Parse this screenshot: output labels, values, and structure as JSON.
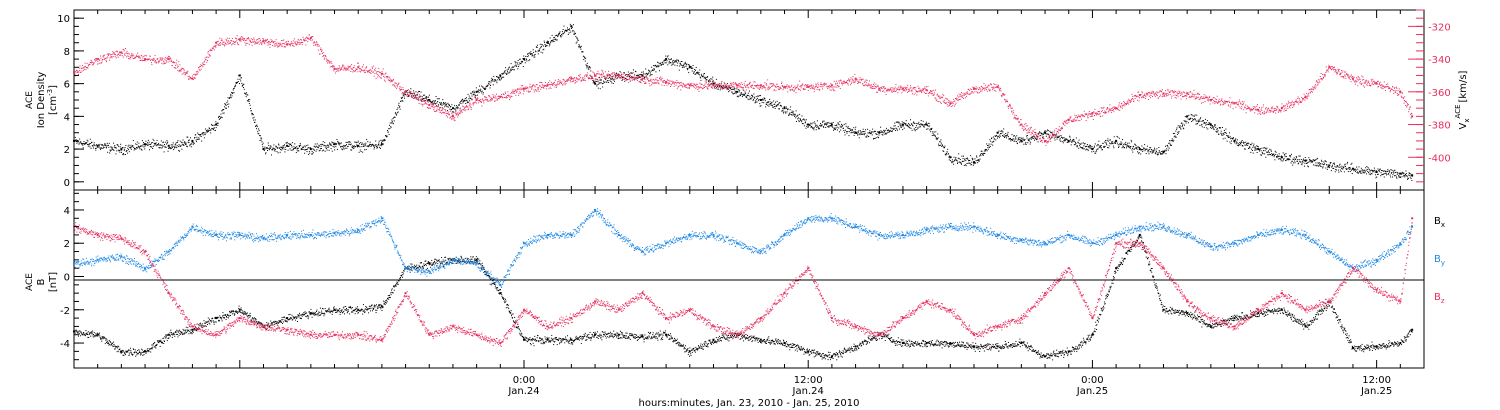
{
  "colors": {
    "axis": "#000000",
    "density": "#000000",
    "velocity": "#e8305f",
    "bx": "#000000",
    "by": "#1e88e5",
    "bz": "#e8305f"
  },
  "xlabel": "hours:minutes, Jan. 23, 2010 - Jan. 25, 2010",
  "x_range_hours": [
    -19,
    38
  ],
  "x_ticks": [
    {
      "hour": 0,
      "time": "0:00",
      "date": "Jan.24"
    },
    {
      "hour": 12,
      "time": "12:00",
      "date": "Jan.24"
    },
    {
      "hour": 24,
      "time": "0:00",
      "date": "Jan.25"
    },
    {
      "hour": 36,
      "time": "12:00",
      "date": "Jan.25"
    }
  ],
  "chart_data": [
    {
      "type": "scatter",
      "panel": "top",
      "ylabel_left": {
        "line1": "ACE",
        "line2": "Ion Density",
        "line3": "[cm",
        "sup": "-3",
        "close": "]"
      },
      "ylabel_right": {
        "var": "V",
        "sub": "x",
        "sup": "ACE",
        "unit": "[km/s]"
      },
      "ylim_left": [
        -0.5,
        10.5
      ],
      "yticks_left": [
        "0",
        "2",
        "4",
        "6",
        "8",
        "10"
      ],
      "ylim_right": [
        -420,
        -310
      ],
      "yticks_right": [
        "-320",
        "-340",
        "-360",
        "-380",
        "-400"
      ],
      "series": [
        {
          "name": "Ion Density",
          "axis": "left",
          "color_key": "density",
          "x": [
            -19,
            -18,
            -17,
            -16,
            -15,
            -14,
            -13,
            -12,
            -11,
            -10,
            -9,
            -8,
            -7,
            -6,
            -5,
            -4,
            -3,
            -2,
            -1,
            0,
            1,
            2,
            3,
            4,
            5,
            6,
            7,
            8,
            9,
            10,
            11,
            12,
            13,
            14,
            15,
            16,
            17,
            18,
            19,
            20,
            21,
            22,
            23,
            24,
            25,
            26,
            27,
            28,
            29,
            30,
            31,
            32,
            33,
            34,
            35,
            36,
            37,
            37.5
          ],
          "y": [
            2.5,
            2.2,
            2.0,
            2.3,
            2.2,
            2.5,
            3.5,
            6.5,
            2.0,
            2.2,
            2.0,
            2.3,
            2.2,
            2.3,
            5.5,
            5.0,
            4.5,
            5.5,
            6.5,
            7.5,
            8.5,
            9.5,
            6.0,
            6.5,
            6.5,
            7.5,
            7.0,
            6.0,
            5.5,
            5.0,
            4.5,
            3.5,
            3.5,
            3.0,
            3.0,
            3.5,
            3.5,
            1.5,
            1.2,
            3.0,
            2.5,
            3.0,
            2.5,
            2.0,
            2.5,
            2.0,
            1.8,
            4.0,
            3.5,
            2.5,
            2.0,
            1.5,
            1.3,
            1.0,
            0.8,
            0.6,
            0.5,
            0.4
          ]
        },
        {
          "name": "Vx",
          "axis": "right",
          "color_key": "velocity",
          "x": [
            -19,
            -18,
            -17,
            -16,
            -15,
            -14,
            -13,
            -12,
            -11,
            -10,
            -9,
            -8,
            -7,
            -6,
            -5,
            -4,
            -3,
            -2,
            -1,
            0,
            1,
            2,
            3,
            4,
            5,
            6,
            7,
            8,
            9,
            10,
            11,
            12,
            13,
            14,
            15,
            16,
            17,
            18,
            19,
            20,
            21,
            22,
            23,
            24,
            25,
            26,
            27,
            28,
            29,
            30,
            31,
            32,
            33,
            34,
            35,
            36,
            37,
            37.5
          ],
          "y": [
            -348,
            -340,
            -336,
            -340,
            -340,
            -352,
            -330,
            -328,
            -329,
            -331,
            -327,
            -346,
            -345,
            -349,
            -360,
            -368,
            -375,
            -365,
            -363,
            -358,
            -356,
            -352,
            -350,
            -350,
            -352,
            -354,
            -356,
            -356,
            -356,
            -356,
            -357,
            -357,
            -356,
            -352,
            -358,
            -358,
            -359,
            -367,
            -358,
            -357,
            -380,
            -390,
            -377,
            -373,
            -370,
            -362,
            -361,
            -361,
            -365,
            -367,
            -371,
            -370,
            -363,
            -345,
            -352,
            -355,
            -360,
            -375
          ]
        }
      ]
    },
    {
      "type": "scatter",
      "panel": "bottom",
      "ylabel_left": {
        "line1": "ACE",
        "line2": "B",
        "line3": "[nT]"
      },
      "ylim": [
        -5.5,
        5.2
      ],
      "yticks": [
        "4",
        "2",
        "0",
        "-2",
        "-4"
      ],
      "legend_position": "right",
      "series": [
        {
          "name": "B",
          "sub": "x",
          "color_key": "bx",
          "x": [
            -19,
            -18,
            -17,
            -16,
            -15,
            -14,
            -13,
            -12,
            -11,
            -10,
            -9,
            -8,
            -7,
            -6,
            -5,
            -4,
            -3,
            -2,
            -1,
            0,
            1,
            2,
            3,
            4,
            5,
            6,
            7,
            8,
            9,
            10,
            11,
            12,
            13,
            14,
            15,
            16,
            17,
            18,
            19,
            20,
            21,
            22,
            23,
            24,
            25,
            26,
            27,
            28,
            29,
            30,
            31,
            32,
            33,
            34,
            35,
            36,
            37,
            37.5
          ],
          "y": [
            -3.3,
            -3.5,
            -4.5,
            -4.5,
            -3.5,
            -3.2,
            -2.5,
            -2.0,
            -3.0,
            -2.5,
            -2.2,
            -2.0,
            -2.0,
            -1.8,
            0.5,
            0.8,
            1.0,
            1.0,
            -1.0,
            -3.8,
            -3.8,
            -3.8,
            -3.5,
            -3.5,
            -3.6,
            -3.5,
            -4.5,
            -3.8,
            -3.5,
            -3.8,
            -4.0,
            -4.5,
            -4.8,
            -4.2,
            -3.5,
            -4.0,
            -4.0,
            -4.0,
            -4.2,
            -4.2,
            -4.0,
            -4.8,
            -4.5,
            -3.5,
            0.5,
            2.5,
            -2.0,
            -2.2,
            -3.0,
            -2.5,
            -2.2,
            -2.0,
            -3.0,
            -1.5,
            -4.3,
            -4.2,
            -4.0,
            -3.2
          ]
        },
        {
          "name": "B",
          "sub": "y",
          "color_key": "by",
          "x": [
            -19,
            -18,
            -17,
            -16,
            -15,
            -14,
            -13,
            -12,
            -11,
            -10,
            -9,
            -8,
            -7,
            -6,
            -5,
            -4,
            -3,
            -2,
            -1,
            0,
            1,
            2,
            3,
            4,
            5,
            6,
            7,
            8,
            9,
            10,
            11,
            12,
            13,
            14,
            15,
            16,
            17,
            18,
            19,
            20,
            21,
            22,
            23,
            24,
            25,
            26,
            27,
            28,
            29,
            30,
            31,
            32,
            33,
            34,
            35,
            36,
            37,
            37.5
          ],
          "y": [
            0.8,
            1.0,
            1.2,
            0.5,
            1.5,
            3.0,
            2.5,
            2.5,
            2.3,
            2.5,
            2.5,
            2.6,
            2.8,
            3.5,
            0.5,
            0.3,
            1.0,
            0.8,
            -0.5,
            2.0,
            2.5,
            2.5,
            4.0,
            2.5,
            1.5,
            2.0,
            2.5,
            2.5,
            2.0,
            1.5,
            2.5,
            3.5,
            3.5,
            3.0,
            2.5,
            2.5,
            2.8,
            3.0,
            3.0,
            2.5,
            2.2,
            2.0,
            2.5,
            2.0,
            2.5,
            3.0,
            3.0,
            2.5,
            1.8,
            2.0,
            2.5,
            2.8,
            2.5,
            1.5,
            0.5,
            1.0,
            2.0,
            3.0
          ]
        },
        {
          "name": "B",
          "sub": "z",
          "color_key": "bz",
          "x": [
            -19,
            -18,
            -17,
            -16,
            -15,
            -14,
            -13,
            -12,
            -11,
            -10,
            -9,
            -8,
            -7,
            -6,
            -5,
            -4,
            -3,
            -2,
            -1,
            0,
            1,
            2,
            3,
            4,
            5,
            6,
            7,
            8,
            9,
            10,
            11,
            12,
            13,
            14,
            15,
            16,
            17,
            18,
            19,
            20,
            21,
            22,
            23,
            24,
            25,
            26,
            27,
            28,
            29,
            30,
            31,
            32,
            33,
            34,
            35,
            36,
            37,
            37.5
          ],
          "y": [
            3.0,
            2.5,
            2.3,
            1.5,
            -1.0,
            -3.0,
            -3.5,
            -2.5,
            -3.0,
            -3.2,
            -3.5,
            -3.5,
            -3.5,
            -3.8,
            -1.0,
            -3.5,
            -3.0,
            -3.5,
            -4.0,
            -2.0,
            -3.0,
            -2.5,
            -1.5,
            -2.0,
            -1.0,
            -2.5,
            -2.0,
            -3.0,
            -3.5,
            -2.5,
            -1.0,
            0.5,
            -2.5,
            -3.0,
            -3.5,
            -2.5,
            -1.5,
            -2.0,
            -3.5,
            -3.0,
            -2.5,
            -1.0,
            0.5,
            -2.5,
            2.0,
            2.0,
            0.5,
            -1.5,
            -2.5,
            -3.0,
            -2.0,
            -1.0,
            -2.0,
            -1.5,
            0.5,
            -0.8,
            -1.5,
            3.5
          ]
        }
      ]
    }
  ]
}
